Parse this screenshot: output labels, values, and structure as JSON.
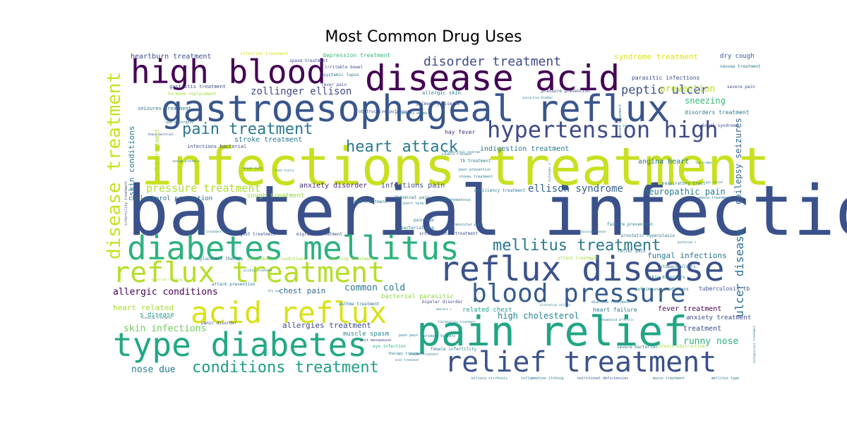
{
  "chart_data": {
    "type": "wordcloud",
    "title": "Most Common Drug Uses",
    "words": [
      {
        "text": "bacterial infections",
        "weight": 100,
        "color": "#3b518b"
      },
      {
        "text": "infections treatment",
        "weight": 96,
        "color": "#c8e020"
      },
      {
        "text": "gastroesophageal reflux",
        "weight": 62,
        "color": "#39568c"
      },
      {
        "text": "disease acid",
        "weight": 58,
        "color": "#440154"
      },
      {
        "text": "high blood",
        "weight": 55,
        "color": "#440154"
      },
      {
        "text": "pain relief",
        "weight": 57,
        "color": "#21a585"
      },
      {
        "text": "reflux disease",
        "weight": 52,
        "color": "#3b518b"
      },
      {
        "text": "type diabetes",
        "weight": 52,
        "color": "#22a884"
      },
      {
        "text": "diabetes mellitus",
        "weight": 52,
        "color": "#2db27d"
      },
      {
        "text": "reflux treatment",
        "weight": 44,
        "color": "#b5de2b"
      },
      {
        "text": "acid reflux",
        "weight": 44,
        "color": "#d8e219"
      },
      {
        "text": "relief treatment",
        "weight": 44,
        "color": "#3b518b"
      },
      {
        "text": "blood pressure",
        "weight": 40,
        "color": "#365c8d"
      },
      {
        "text": "hypertension high",
        "weight": 34,
        "color": "#3e4a89"
      },
      {
        "text": "disease treatment",
        "weight": 28,
        "color": "#c8e020"
      },
      {
        "text": "conditions treatment",
        "weight": 24,
        "color": "#1f9e89"
      },
      {
        "text": "heart attack",
        "weight": 22,
        "color": "#2a788e"
      },
      {
        "text": "pain treatment",
        "weight": 22,
        "color": "#2a788e"
      },
      {
        "text": "mellitus treatment",
        "weight": 22,
        "color": "#2a788e"
      },
      {
        "text": "disorder treatment",
        "weight": 18,
        "color": "#3e4a89"
      },
      {
        "text": "peptic ulcer",
        "weight": 18,
        "color": "#3b528b"
      },
      {
        "text": "zollinger ellison",
        "weight": 16,
        "color": "#3e4a89"
      },
      {
        "text": "pressure treatment",
        "weight": 16,
        "color": "#addc30"
      },
      {
        "text": "ellison syndrome",
        "weight": 16,
        "color": "#355f8d"
      },
      {
        "text": "ulcer disease",
        "weight": 18,
        "color": "#2c728e"
      },
      {
        "text": "skin infections",
        "weight": 14,
        "color": "#6ccd5a"
      },
      {
        "text": "allergic conditions",
        "weight": 14,
        "color": "#440154"
      },
      {
        "text": "runny nose",
        "weight": 14,
        "color": "#2db27d"
      },
      {
        "text": "nose due",
        "weight": 14,
        "color": "#297b8e"
      },
      {
        "text": "common cold",
        "weight": 14,
        "color": "#2a788e"
      },
      {
        "text": "epilepsy seizures",
        "weight": 13,
        "color": "#31688e"
      },
      {
        "text": "sneezing",
        "weight": 13,
        "color": "#35b779"
      },
      {
        "text": "prevention",
        "weight": 13,
        "color": "#bddf26"
      },
      {
        "text": "neuropathic pain",
        "weight": 13,
        "color": "#287c8e"
      },
      {
        "text": "fungal infections",
        "weight": 12,
        "color": "#2a768e"
      },
      {
        "text": "high cholesterol",
        "weight": 12,
        "color": "#25858e"
      },
      {
        "text": "allergies treatment",
        "weight": 12,
        "color": "#3e4989"
      },
      {
        "text": "chest pain",
        "weight": 12,
        "color": "#31688e"
      },
      {
        "text": "heart related",
        "weight": 12,
        "color": "#a8db34"
      },
      {
        "text": "skin conditions",
        "weight": 12,
        "color": "#2a788e"
      },
      {
        "text": "syndrome treatment",
        "weight": 12,
        "color": "#dde318"
      },
      {
        "text": "fever treatment",
        "weight": 11,
        "color": "#440154"
      },
      {
        "text": "treatment",
        "weight": 11,
        "color": "#3e4a89"
      },
      {
        "text": "angina heart",
        "weight": 11,
        "color": "#2a788e"
      },
      {
        "text": "stroke treatment",
        "weight": 11,
        "color": "#2a788e"
      },
      {
        "text": "indigestion treatment",
        "weight": 11,
        "color": "#2a788e"
      },
      {
        "text": "anxiety disorder",
        "weight": 11,
        "color": "#472a7a"
      },
      {
        "text": "infections pain",
        "weight": 11,
        "color": "#3e4a89"
      },
      {
        "text": "cough treatment",
        "weight": 10,
        "color": "#93d741"
      },
      {
        "text": "cholesterol prevention",
        "weight": 10,
        "color": "#31688e"
      },
      {
        "text": "s disease",
        "weight": 10,
        "color": "#1fa188"
      },
      {
        "text": "bacterial parasitic",
        "weight": 10,
        "color": "#90d743"
      },
      {
        "text": "related chest",
        "weight": 10,
        "color": "#20a386"
      },
      {
        "text": "muscle spasm",
        "weight": 10,
        "color": "#26828e"
      },
      {
        "text": "anxiety treatment",
        "weight": 10,
        "color": "#3e4a89"
      },
      {
        "text": "heartburn treatment",
        "weight": 10,
        "color": "#3e4a89"
      },
      {
        "text": "dry cough",
        "weight": 10,
        "color": "#3b528b"
      },
      {
        "text": "disorders treatment",
        "weight": 9,
        "color": "#2a788e"
      },
      {
        "text": "cold treatment",
        "weight": 9,
        "color": "#a5db36"
      },
      {
        "text": "seizures treatment",
        "weight": 8,
        "color": "#2a788e"
      },
      {
        "text": "hay fever",
        "weight": 9,
        "color": "#472c7a"
      },
      {
        "text": "heart failure",
        "weight": 9,
        "color": "#2a788e"
      },
      {
        "text": "tuberculosis tb",
        "weight": 8,
        "color": "#3e4a89"
      },
      {
        "text": "infections bacterial",
        "weight": 8,
        "color": "#3e4a89"
      },
      {
        "text": "depression treatment",
        "weight": 8,
        "color": "#35b779"
      },
      {
        "text": "gastritis treatment",
        "weight": 8,
        "color": "#3e4a89"
      },
      {
        "text": "parasitic infections",
        "weight": 8,
        "color": "#3e4a89"
      },
      {
        "text": "allergic skin",
        "weight": 8,
        "color": "#2a788e"
      },
      {
        "text": "pressure prevention",
        "weight": 7,
        "color": "#3e4a89"
      },
      {
        "text": "obstructive pulmonary",
        "weight": 7,
        "color": "#3e4a89"
      },
      {
        "text": "pulmonary disease",
        "weight": 7,
        "color": "#3e4a89"
      },
      {
        "text": "nausea treatment",
        "weight": 7,
        "color": "#2a788e"
      },
      {
        "text": "respiratory tract",
        "weight": 7,
        "color": "#2a788e"
      },
      {
        "text": "failure prevention",
        "weight": 7,
        "color": "#2a788e"
      },
      {
        "text": "prostatic hyperplasia",
        "weight": 7,
        "color": "#2a788e"
      },
      {
        "text": "bacterial eye",
        "weight": 7,
        "color": "#2a788e"
      },
      {
        "text": "abdominal pain",
        "weight": 7,
        "color": "#2a788e"
      },
      {
        "text": "pain due",
        "weight": 7,
        "color": "#2a788e"
      },
      {
        "text": "copd treatment",
        "weight": 7,
        "color": "#2a788e"
      },
      {
        "text": "tb treatment",
        "weight": 7,
        "color": "#2a788e"
      },
      {
        "text": "deficiency treatment",
        "weight": 7,
        "color": "#2a788e"
      },
      {
        "text": "schizophrenia treatment",
        "weight": 7,
        "color": "#3e4a89"
      },
      {
        "text": "migraine treatment",
        "weight": 7,
        "color": "#3e4a89"
      },
      {
        "text": "gout treatment",
        "weight": 7,
        "color": "#3e4a89"
      },
      {
        "text": "attack treatment",
        "weight": 7,
        "color": "#a0da39"
      },
      {
        "text": "relief pain",
        "weight": 7,
        "color": "#2a788e"
      },
      {
        "text": "stomach ulcers",
        "weight": 7,
        "color": "#2a788e"
      },
      {
        "text": "skin disorders",
        "weight": 7,
        "color": "#2a788e"
      },
      {
        "text": "autoimmune conditions",
        "weight": 7,
        "color": "#2a788e"
      },
      {
        "text": "bipolar disorder",
        "weight": 7,
        "color": "#3e4a89"
      },
      {
        "text": "asthma treatment",
        "weight": 7,
        "color": "#2a788e"
      },
      {
        "text": "replacement therapy",
        "weight": 7,
        "color": "#2a788e"
      },
      {
        "text": "inflammatory conditions",
        "weight": 7,
        "color": "#a0da39"
      },
      {
        "text": "vomiting treatment",
        "weight": 7,
        "color": "#a0da39"
      },
      {
        "text": "attack prevention",
        "weight": 7,
        "color": "#2a788e"
      },
      {
        "text": "panic disorder",
        "weight": 7,
        "color": "#3e4a89"
      },
      {
        "text": "eye infection",
        "weight": 7,
        "color": "#2db27d"
      },
      {
        "text": "female infertility",
        "weight": 7,
        "color": "#2a788e"
      },
      {
        "text": "severe bacterial",
        "weight": 7,
        "color": "#2a788e"
      },
      {
        "text": "chronic obstructive",
        "weight": 7,
        "color": "#a0da39"
      },
      {
        "text": "primary biliary",
        "weight": 6,
        "color": "#2a788e"
      },
      {
        "text": "biliary cirrhosis",
        "weight": 6,
        "color": "#2a788e"
      },
      {
        "text": "inflammation itching",
        "weight": 6,
        "color": "#2a788e"
      },
      {
        "text": "nutritional deficiencies",
        "weight": 6,
        "color": "#3e4a89"
      },
      {
        "text": "mucus treatment",
        "weight": 6,
        "color": "#2a788e"
      },
      {
        "text": "mellitus type",
        "weight": 6,
        "color": "#2a788e"
      },
      {
        "text": "infection treatment",
        "weight": 6,
        "color": "#d8e219"
      },
      {
        "text": "spasm treatment",
        "weight": 6,
        "color": "#3e4a89"
      },
      {
        "text": "irritable bowel",
        "weight": 6,
        "color": "#3e4a89"
      },
      {
        "text": "systemic lupus",
        "weight": 6,
        "color": "#2a788e"
      },
      {
        "text": "fever pain",
        "weight": 6,
        "color": "#3e4a89"
      },
      {
        "text": "hormone replacement",
        "weight": 6,
        "color": "#a0da39"
      },
      {
        "text": "cancer treatment",
        "weight": 6,
        "color": "#2a788e"
      },
      {
        "text": "severe pain",
        "weight": 6,
        "color": "#3e4a89"
      },
      {
        "text": "bowel syndrome",
        "weight": 6,
        "color": "#3e4a89"
      },
      {
        "text": "pain prevention",
        "weight": 5,
        "color": "#2a788e"
      },
      {
        "text": "stones treatment",
        "weight": 5,
        "color": "#2a788e"
      },
      {
        "text": "short term",
        "weight": 5,
        "color": "#2a788e"
      },
      {
        "text": "post menopausal",
        "weight": 5,
        "color": "#3e4a89"
      },
      {
        "text": "pain pain",
        "weight": 5,
        "color": "#2a788e"
      },
      {
        "text": "eye disorders",
        "weight": 5,
        "color": "#2a788e"
      },
      {
        "text": "muscular pain",
        "weight": 5,
        "color": "#2a788e"
      },
      {
        "text": "diarrhea treatment",
        "weight": 5,
        "color": "#2a788e"
      },
      {
        "text": "mania treatment",
        "weight": 5,
        "color": "#2a788e"
      },
      {
        "text": "infertility treatment",
        "weight": 5,
        "color": "#3e4a89"
      },
      {
        "text": "therapy treatment",
        "weight": 5,
        "color": "#2a788e"
      },
      {
        "text": "pulmonary edema",
        "weight": 5,
        "color": "#2a788e"
      },
      {
        "text": "lupus erythematosus",
        "weight": 4,
        "color": "#2a788e"
      },
      {
        "text": "osteoporosis treatment",
        "weight": 4,
        "color": "#2a788e"
      },
      {
        "text": "benign prostatic",
        "weight": 4,
        "color": "#2a788e"
      },
      {
        "text": "parkinson s",
        "weight": 4,
        "color": "#2a788e"
      },
      {
        "text": "alzheimer s",
        "weight": 4,
        "color": "#2a788e"
      },
      {
        "text": "blood clots",
        "weight": 4,
        "color": "#2a788e"
      },
      {
        "text": "head injury",
        "weight": 4,
        "color": "#2a788e"
      },
      {
        "text": "gas relief",
        "weight": 4,
        "color": "#2a788e"
      },
      {
        "text": "rheumatoid arthritis",
        "weight": 4,
        "color": "#2a788e"
      },
      {
        "text": "heavy menstrual",
        "weight": 4,
        "color": "#3e4a89"
      },
      {
        "text": "menstrual bleeding",
        "weight": 4,
        "color": "#a0da39"
      },
      {
        "text": "bleeding treatment",
        "weight": 4,
        "color": "#2a788e"
      },
      {
        "text": "acne treatment",
        "weight": 4,
        "color": "#2a788e"
      },
      {
        "text": "meniere s",
        "weight": 4,
        "color": "#2a788e"
      },
      {
        "text": "dry eye",
        "weight": 4,
        "color": "#2a788e"
      },
      {
        "text": "ulcerative colitis",
        "weight": 4,
        "color": "#2a788e"
      },
      {
        "text": "vascular disease",
        "weight": 4,
        "color": "#2a788e"
      },
      {
        "text": "fibromyalgia treatment",
        "weight": 4,
        "color": "#2a788e"
      },
      {
        "text": "bladder treatment",
        "weight": 4,
        "color": "#2a788e"
      },
      {
        "text": "sore throat",
        "weight": 4,
        "color": "#2a788e"
      },
      {
        "text": "overactive bladder",
        "weight": 4,
        "color": "#2a788e"
      },
      {
        "text": "leg cramps",
        "weight": 4,
        "color": "#2a788e"
      },
      {
        "text": "insomnia treatment",
        "weight": 4,
        "color": "#2a788e"
      },
      {
        "text": "premenstrual syndrome",
        "weight": 4,
        "color": "#2a788e"
      },
      {
        "text": "acidity treatment",
        "weight": 4,
        "color": "#2a788e"
      },
      {
        "text": "pain treatment related",
        "weight": 4,
        "color": "#2a788e"
      }
    ]
  }
}
